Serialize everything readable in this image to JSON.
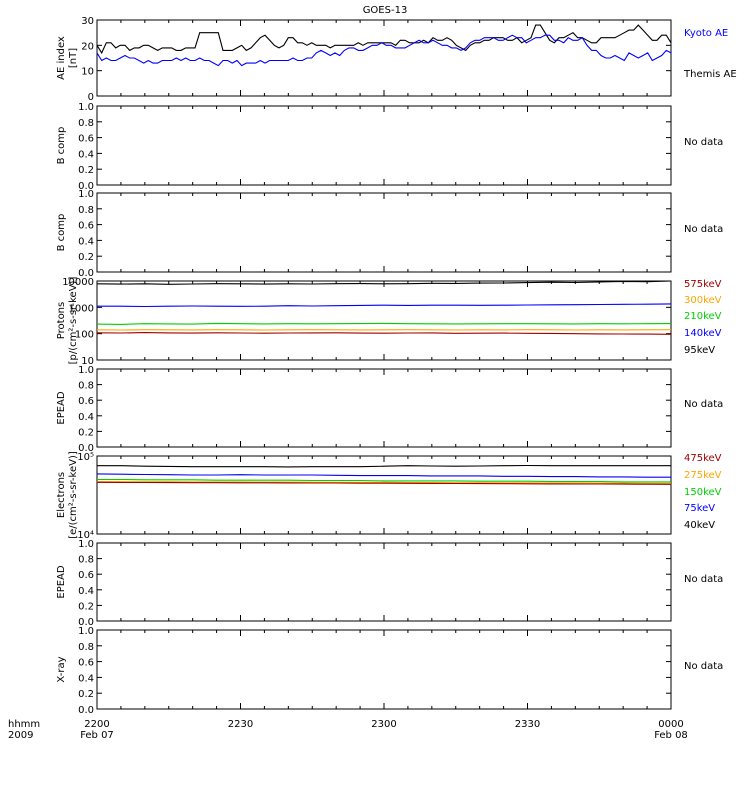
{
  "title": "GOES-13",
  "time_axis": {
    "label_line1": "hhmm",
    "label_line2": "2009",
    "ticks": [
      {
        "label": "2200",
        "date": "Feb 07"
      },
      {
        "label": "2230",
        "date": ""
      },
      {
        "label": "2300",
        "date": ""
      },
      {
        "label": "2330",
        "date": ""
      },
      {
        "label": "0000",
        "date": "Feb 08"
      }
    ]
  },
  "colors": {
    "black": "#000000",
    "blue": "#0000ff",
    "red": "#a00000",
    "orange": "#ffa500",
    "green": "#00d000"
  },
  "chart_data": [
    {
      "type": "line",
      "ylabel_line1": "AE index",
      "ylabel_line2": "[nT]",
      "ylim": [
        0,
        30
      ],
      "yticks": [
        "0",
        "10",
        "20",
        "30"
      ],
      "legend": [
        {
          "label": "Kyoto AE",
          "color": "#0000ff"
        },
        {
          "label": "Themis AE",
          "color": "#000000"
        }
      ],
      "series": [
        {
          "name": "Themis AE",
          "color": "#000000",
          "values": [
            20,
            17,
            21,
            21,
            19,
            20,
            20,
            18,
            19,
            19,
            20,
            20,
            19,
            18,
            19,
            19,
            19,
            18,
            18,
            19,
            19,
            19,
            25,
            25,
            25,
            25,
            25,
            18,
            18,
            18,
            19,
            20,
            18,
            19,
            21,
            23,
            24,
            22,
            20,
            19,
            20,
            23,
            23,
            21,
            21,
            20,
            21,
            20,
            20,
            20,
            19,
            20,
            20,
            20,
            20,
            20,
            21,
            20,
            21,
            21,
            21,
            21,
            21,
            21,
            20,
            22,
            22,
            21,
            21,
            21,
            22,
            21,
            23,
            22,
            22,
            23,
            22,
            20,
            19,
            18,
            20,
            21,
            21,
            22,
            22,
            23,
            23,
            23,
            22,
            22,
            23,
            21,
            22,
            23,
            28,
            28,
            25,
            22,
            21,
            23,
            23,
            24,
            25,
            23,
            23,
            22,
            21,
            21,
            23,
            23,
            23,
            23,
            24,
            25,
            26,
            26,
            28,
            26,
            24,
            22,
            22,
            24,
            24,
            21
          ]
        },
        {
          "name": "Kyoto AE",
          "color": "#0000ff",
          "values": [
            17,
            14,
            15,
            14,
            14,
            15,
            16,
            15,
            15,
            14,
            13,
            14,
            13,
            13,
            14,
            14,
            14,
            15,
            14,
            15,
            14,
            14,
            15,
            14,
            14,
            13,
            12,
            14,
            14,
            13,
            14,
            12,
            13,
            13,
            13,
            14,
            13,
            14,
            14,
            14,
            14,
            14,
            15,
            14,
            14,
            15,
            15,
            17,
            18,
            17,
            16,
            17,
            16,
            18,
            19,
            19,
            18,
            18,
            19,
            20,
            20,
            21,
            20,
            20,
            19,
            19,
            19,
            20,
            21,
            22,
            21,
            21,
            22,
            21,
            20,
            20,
            19,
            19,
            18,
            19,
            21,
            22,
            22,
            23,
            23,
            23,
            22,
            22,
            23,
            24,
            23,
            23,
            21,
            22,
            23,
            23,
            24,
            24,
            22,
            22,
            21,
            23,
            22,
            22,
            23,
            20,
            18,
            18,
            16,
            15,
            15,
            16,
            15,
            14,
            17,
            16,
            15,
            16,
            17,
            14,
            15,
            16,
            18,
            17
          ]
        }
      ]
    },
    {
      "type": "line",
      "ylabel_line1": "B comp",
      "ylabel_line2": "",
      "ylim": [
        0,
        1
      ],
      "yticks": [
        "0.0",
        "0.2",
        "0.4",
        "0.6",
        "0.8",
        "1.0"
      ],
      "legend": [
        {
          "label": "No data",
          "color": "#000000"
        }
      ],
      "series": []
    },
    {
      "type": "line",
      "ylabel_line1": "B comp",
      "ylabel_line2": "",
      "ylim": [
        0,
        1
      ],
      "yticks": [
        "0.0",
        "0.2",
        "0.4",
        "0.6",
        "0.8",
        "1.0"
      ],
      "legend": [
        {
          "label": "No data",
          "color": "#000000"
        }
      ],
      "series": []
    },
    {
      "type": "line",
      "log_scale": true,
      "ylabel_line1": "Protons",
      "ylabel_line2": "[p/(cm²-s-sr-keV)]",
      "ylim": [
        10,
        10000
      ],
      "yticks": [
        "10",
        "100",
        "1000",
        "10000"
      ],
      "legend": [
        {
          "label": "575keV",
          "color": "#a00000"
        },
        {
          "label": "300keV",
          "color": "#ffa500"
        },
        {
          "label": "210keV",
          "color": "#00d000"
        },
        {
          "label": "140keV",
          "color": "#0000ff"
        },
        {
          "label": "95keV",
          "color": "#000000"
        }
      ],
      "series": [
        {
          "name": "95keV",
          "color": "#000000",
          "values": [
            7800,
            7600,
            7800,
            7500,
            7700,
            7900,
            7800,
            7600,
            7800,
            7700,
            7900,
            8000,
            7800,
            7900,
            8200,
            8100,
            8300,
            8400,
            8700,
            9000,
            8800,
            9200,
            9600,
            9400,
            10000
          ]
        },
        {
          "name": "140keV",
          "color": "#0000ff",
          "values": [
            1100,
            1100,
            1080,
            1100,
            1120,
            1100,
            1090,
            1100,
            1150,
            1120,
            1150,
            1180,
            1200,
            1180,
            1200,
            1210,
            1190,
            1200,
            1230,
            1250,
            1260,
            1280,
            1300,
            1320,
            1350
          ]
        },
        {
          "name": "210keV",
          "color": "#00d000",
          "values": [
            230,
            225,
            240,
            235,
            230,
            245,
            240,
            235,
            240,
            238,
            240,
            242,
            245,
            240,
            238,
            235,
            238,
            240,
            240,
            238,
            235,
            240,
            238,
            240,
            242
          ]
        },
        {
          "name": "300keV",
          "color": "#ffa500",
          "values": [
            140,
            138,
            142,
            140,
            139,
            141,
            140,
            138,
            140,
            141,
            140,
            139,
            140,
            142,
            140,
            138,
            140,
            139,
            141,
            140,
            138,
            140,
            139,
            140,
            141
          ]
        },
        {
          "name": "575keV",
          "color": "#a00000",
          "values": [
            108,
            106,
            110,
            107,
            105,
            108,
            106,
            104,
            106,
            107,
            108,
            105,
            104,
            106,
            107,
            103,
            104,
            105,
            103,
            102,
            100,
            98,
            97,
            96,
            95
          ]
        }
      ]
    },
    {
      "type": "line",
      "ylabel_line1": "EPEAD",
      "ylabel_line2": "",
      "ylim": [
        0,
        1
      ],
      "yticks": [
        "0.0",
        "0.2",
        "0.4",
        "0.6",
        "0.8",
        "1.0"
      ],
      "legend": [
        {
          "label": "No data",
          "color": "#000000"
        }
      ],
      "series": []
    },
    {
      "type": "line",
      "log_scale": true,
      "ylabel_line1": "Electrons",
      "ylabel_line2": "[e/(cm²-s-sr-keV)]",
      "ylim": [
        10000,
        100000
      ],
      "yticks": [
        "10⁴",
        "10⁵"
      ],
      "legend": [
        {
          "label": "475keV",
          "color": "#a00000"
        },
        {
          "label": "275keV",
          "color": "#ffa500"
        },
        {
          "label": "150keV",
          "color": "#00d000"
        },
        {
          "label": "75keV",
          "color": "#0000ff"
        },
        {
          "label": "40keV",
          "color": "#000000"
        }
      ],
      "series": [
        {
          "name": "40keV",
          "color": "#000000",
          "values": [
            75000,
            75000,
            74000,
            73500,
            73000,
            73000,
            73000,
            73000,
            72500,
            73000,
            73000,
            73000,
            74000,
            75000,
            74500,
            74000,
            74500,
            75000,
            75500,
            75000,
            75000,
            75000,
            75000,
            75000,
            75000
          ]
        },
        {
          "name": "75keV",
          "color": "#0000ff",
          "values": [
            59000,
            58500,
            58000,
            57500,
            57000,
            57000,
            57500,
            57000,
            57000,
            57000,
            56500,
            56000,
            56000,
            56000,
            55500,
            55500,
            55500,
            55000,
            55000,
            54500,
            54500,
            54000,
            54000,
            53500,
            53500
          ]
        },
        {
          "name": "150keV",
          "color": "#00d000",
          "values": [
            50000,
            50000,
            49500,
            49500,
            49500,
            49000,
            49000,
            49000,
            49000,
            48500,
            48500,
            48500,
            48000,
            48000,
            48000,
            48000,
            47500,
            47500,
            47500,
            47000,
            47000,
            47000,
            46500,
            46500,
            46500
          ]
        },
        {
          "name": "275keV",
          "color": "#ffa500",
          "values": [
            47000,
            47000,
            46800,
            46800,
            46500,
            46500,
            46500,
            46300,
            46300,
            46200,
            46000,
            46000,
            46000,
            45800,
            45800,
            45500,
            45500,
            45300,
            45300,
            45000,
            45000,
            44800,
            44800,
            44500,
            44500
          ]
        },
        {
          "name": "475keV",
          "color": "#a00000",
          "values": [
            46000,
            45800,
            45800,
            45600,
            45500,
            45400,
            45300,
            45300,
            45200,
            45000,
            45000,
            44800,
            44800,
            44700,
            44500,
            44400,
            44300,
            44100,
            44000,
            43900,
            43800,
            43700,
            43600,
            43500,
            43400
          ]
        }
      ]
    },
    {
      "type": "line",
      "ylabel_line1": "EPEAD",
      "ylabel_line2": "",
      "ylim": [
        0,
        1
      ],
      "yticks": [
        "0.0",
        "0.2",
        "0.4",
        "0.6",
        "0.8",
        "1.0"
      ],
      "legend": [
        {
          "label": "No data",
          "color": "#000000"
        }
      ],
      "series": []
    },
    {
      "type": "line",
      "ylabel_line1": "X-ray",
      "ylabel_line2": "",
      "ylim": [
        0,
        1
      ],
      "yticks": [
        "0.0",
        "0.2",
        "0.4",
        "0.6",
        "0.8",
        "1.0"
      ],
      "legend": [
        {
          "label": "No data",
          "color": "#000000"
        }
      ],
      "series": []
    }
  ]
}
